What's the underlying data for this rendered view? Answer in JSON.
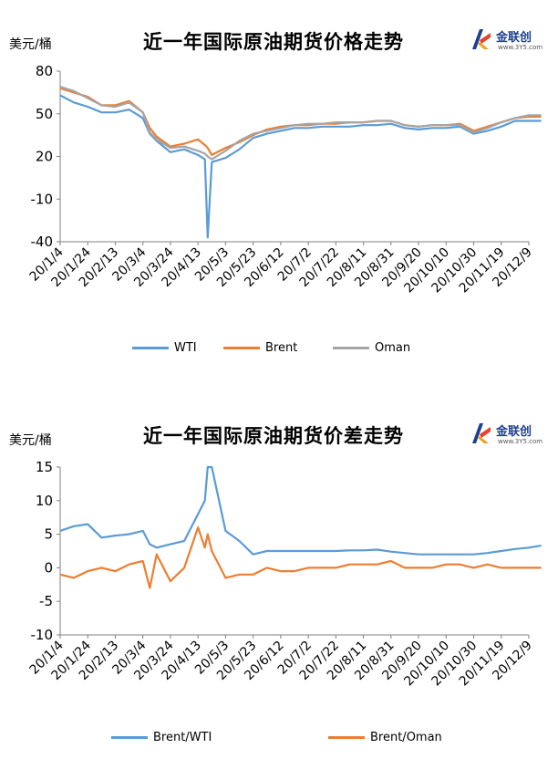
{
  "logo": {
    "name": "金联创",
    "url": "www.3Y5.com"
  },
  "colors": {
    "WTI": "#5b9bd5",
    "Brent": "#ed7d31",
    "Oman": "#a5a5a5",
    "axis": "#808080"
  },
  "x_tick_labels": [
    "20/1/4",
    "20/1/24",
    "20/2/13",
    "20/3/4",
    "20/3/24",
    "20/4/13",
    "20/5/3",
    "20/5/23",
    "20/6/12",
    "20/7/2",
    "20/7/22",
    "20/8/11",
    "20/8/31",
    "20/9/20",
    "20/10/10",
    "20/10/30",
    "20/11/19",
    "20/12/9"
  ],
  "chart_data": [
    {
      "type": "line",
      "title": "近一年国际原油期货价格走势",
      "ylabel": "美元/桶",
      "ylim": [
        -40,
        80
      ],
      "yticks": [
        80,
        50,
        20,
        -10,
        -40
      ],
      "x": [
        "20/1/4",
        "20/1/14",
        "20/1/24",
        "20/2/3",
        "20/2/13",
        "20/2/23",
        "20/3/4",
        "20/3/9",
        "20/3/14",
        "20/3/24",
        "20/4/3",
        "20/4/13",
        "20/4/18",
        "20/4/20",
        "20/4/23",
        "20/5/3",
        "20/5/13",
        "20/5/23",
        "20/6/2",
        "20/6/12",
        "20/6/22",
        "20/7/2",
        "20/7/12",
        "20/7/22",
        "20/8/1",
        "20/8/11",
        "20/8/21",
        "20/8/31",
        "20/9/10",
        "20/9/20",
        "20/9/30",
        "20/10/10",
        "20/10/20",
        "20/10/30",
        "20/11/9",
        "20/11/19",
        "20/11/29",
        "20/12/9",
        "20/12/18"
      ],
      "series": [
        {
          "name": "WTI",
          "values": [
            63,
            58,
            55,
            51,
            51,
            53,
            47,
            36,
            31,
            23,
            25,
            21,
            18,
            -37,
            16,
            19,
            25,
            33,
            36,
            38,
            40,
            40,
            41,
            41,
            41,
            42,
            42,
            43,
            40,
            39,
            40,
            40,
            41,
            36,
            38,
            41,
            45,
            45,
            45
          ]
        },
        {
          "name": "Brent",
          "values": [
            68,
            65,
            62,
            56,
            56,
            59,
            51,
            40,
            34,
            27,
            29,
            32,
            28,
            26,
            21,
            26,
            30,
            35,
            39,
            41,
            42,
            42,
            43,
            43,
            44,
            44,
            45,
            45,
            42,
            41,
            42,
            42,
            43,
            38,
            41,
            44,
            47,
            48,
            48
          ]
        },
        {
          "name": "Oman",
          "values": [
            69,
            66,
            61,
            56,
            55,
            58,
            51,
            37,
            32,
            26,
            27,
            24,
            22,
            20,
            18,
            24,
            31,
            36,
            38,
            40,
            42,
            43,
            43,
            44,
            44,
            44,
            45,
            45,
            42,
            41,
            42,
            42,
            42,
            37,
            40,
            44,
            47,
            49,
            49
          ]
        }
      ],
      "legend": "bottom"
    },
    {
      "type": "line",
      "title": "近一年国际原油期货价差走势",
      "ylabel": "美元/桶",
      "ylim": [
        -10,
        15
      ],
      "yticks": [
        15,
        10,
        5,
        0,
        -5,
        -10
      ],
      "x": [
        "20/1/4",
        "20/1/14",
        "20/1/24",
        "20/2/3",
        "20/2/13",
        "20/2/23",
        "20/3/4",
        "20/3/9",
        "20/3/14",
        "20/3/24",
        "20/4/3",
        "20/4/13",
        "20/4/18",
        "20/4/20",
        "20/4/23",
        "20/5/3",
        "20/5/13",
        "20/5/23",
        "20/6/2",
        "20/6/12",
        "20/6/22",
        "20/7/2",
        "20/7/12",
        "20/7/22",
        "20/8/1",
        "20/8/11",
        "20/8/21",
        "20/8/31",
        "20/9/10",
        "20/9/20",
        "20/9/30",
        "20/10/10",
        "20/10/20",
        "20/10/30",
        "20/11/9",
        "20/11/19",
        "20/11/29",
        "20/12/9",
        "20/12/18"
      ],
      "series": [
        {
          "name": "Brent/WTI",
          "values": [
            5.5,
            6.2,
            6.5,
            4.5,
            4.8,
            5.0,
            5.5,
            3.5,
            3.0,
            3.5,
            4.0,
            8.0,
            10.0,
            15,
            15,
            5.5,
            4.0,
            2.0,
            2.5,
            2.5,
            2.5,
            2.5,
            2.5,
            2.5,
            2.6,
            2.6,
            2.7,
            2.4,
            2.2,
            2.0,
            2.0,
            2.0,
            2.0,
            2.0,
            2.2,
            2.5,
            2.8,
            3.0,
            3.3
          ]
        },
        {
          "name": "Brent/Oman",
          "values": [
            -1.0,
            -1.5,
            -0.5,
            0.0,
            -0.5,
            0.5,
            1.0,
            -3.0,
            2.0,
            -2.0,
            0.0,
            6.0,
            3.0,
            5.0,
            2.5,
            -1.5,
            -1.0,
            -1.0,
            0.0,
            -0.5,
            -0.5,
            0.0,
            0.0,
            0.0,
            0.5,
            0.5,
            0.5,
            1.0,
            0.0,
            0.0,
            0.0,
            0.5,
            0.5,
            0.0,
            0.5,
            0.0,
            0.0,
            0.0,
            0.0
          ]
        }
      ],
      "legend": "bottom"
    }
  ]
}
